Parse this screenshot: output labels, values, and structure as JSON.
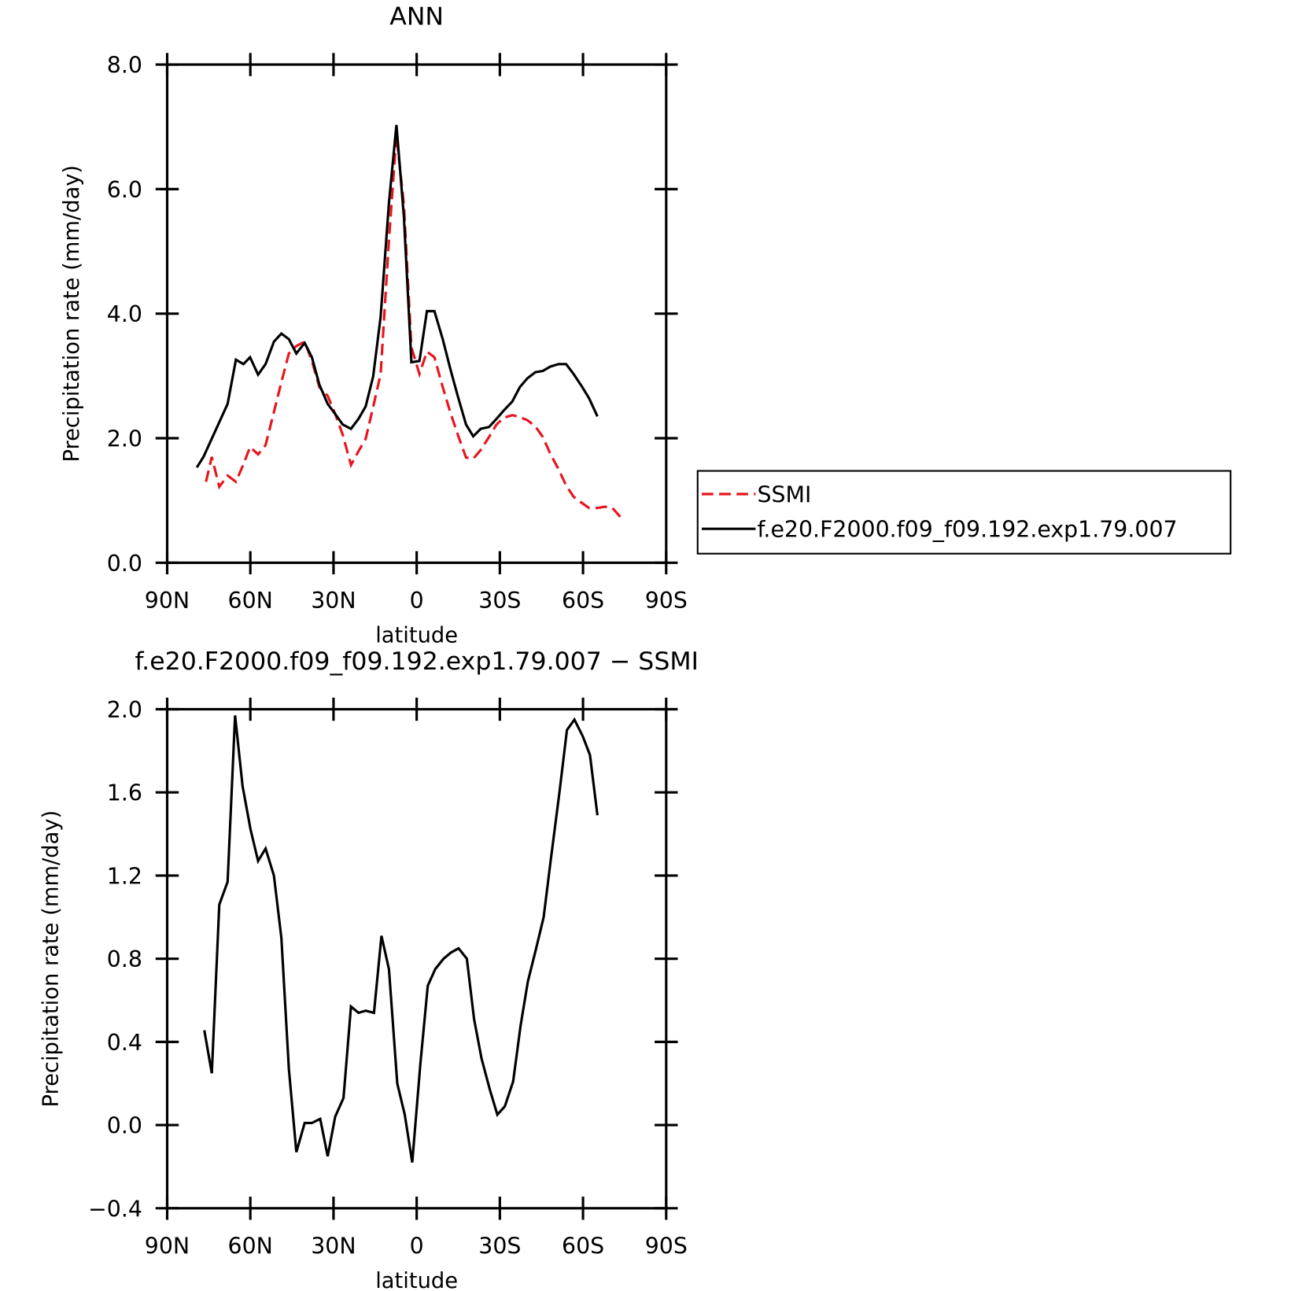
{
  "chart_data": [
    {
      "type": "line",
      "title": "ANN",
      "xlabel": "latitude",
      "ylabel": "Precipitation rate (mm/day)",
      "xlim": [
        90,
        -90
      ],
      "xticks": [
        {
          "value": 90,
          "label": "90N"
        },
        {
          "value": 60,
          "label": "60N"
        },
        {
          "value": 30,
          "label": "30N"
        },
        0,
        {
          "value": -30,
          "label": "30S"
        },
        {
          "value": -60,
          "label": "60S"
        },
        {
          "value": -90,
          "label": "90S"
        }
      ],
      "ylim": [
        0,
        8
      ],
      "yticks": [
        {
          "value": 0,
          "label": "0.0"
        },
        {
          "value": 2,
          "label": "2.0"
        },
        {
          "value": 4,
          "label": "4.0"
        },
        {
          "value": 6,
          "label": "6.0"
        },
        {
          "value": 8,
          "label": "8.0"
        }
      ],
      "legend": "right",
      "series": [
        {
          "name": "SSMI",
          "color": "#e8141c",
          "linestyle": "dashed",
          "x": [
            76.0,
            73.9,
            71.2,
            68.2,
            65.2,
            62.5,
            60.1,
            57.2,
            54.5,
            51.5,
            48.8,
            46.1,
            43.4,
            40.4,
            37.8,
            35.1,
            32.1,
            29.4,
            26.7,
            23.7,
            21.0,
            18.4,
            15.7,
            13.0,
            10.0,
            7.3,
            4.6,
            1.9,
            -1.0,
            -3.7,
            -6.4,
            -9.4,
            -12.1,
            -14.8,
            -17.8,
            -20.4,
            -23.1,
            -26.1,
            -28.8,
            -31.5,
            -34.5,
            -37.2,
            -39.9,
            -42.8,
            -45.5,
            -48.2,
            -51.2,
            -53.9,
            -56.6,
            -59.6,
            -62.2,
            -65.2,
            -67.9,
            -70.6,
            -73.6
          ],
          "values": [
            1.3,
            1.7,
            1.22,
            1.4,
            1.3,
            1.58,
            1.86,
            1.74,
            1.89,
            2.42,
            2.9,
            3.36,
            3.48,
            3.55,
            3.24,
            2.82,
            2.68,
            2.39,
            2.06,
            1.57,
            1.79,
            1.99,
            2.5,
            3.03,
            5.18,
            6.87,
            5.74,
            3.46,
            3.03,
            3.39,
            3.3,
            2.82,
            2.42,
            2.06,
            1.69,
            1.67,
            1.81,
            2.02,
            2.22,
            2.33,
            2.37,
            2.34,
            2.29,
            2.19,
            2.02,
            1.75,
            1.5,
            1.24,
            1.06,
            0.96,
            0.88,
            0.88,
            0.9,
            0.88,
            0.73
          ]
        },
        {
          "name": "f.e20.F2000.f09_f09.192.exp1.79.007",
          "color": "#000000",
          "linestyle": "solid",
          "x": [
            79.3,
            76.9,
            68.2,
            65.2,
            62.5,
            60.1,
            57.2,
            54.5,
            51.5,
            48.8,
            46.1,
            43.4,
            40.4,
            37.8,
            35.1,
            32.1,
            29.4,
            26.7,
            23.7,
            21.0,
            18.4,
            15.7,
            13.0,
            10.0,
            7.3,
            4.6,
            1.9,
            -1.0,
            -3.7,
            -6.4,
            -9.4,
            -12.1,
            -14.8,
            -17.8,
            -20.4,
            -23.1,
            -26.1,
            -28.8,
            -31.5,
            -34.5,
            -37.2,
            -39.9,
            -42.8,
            -45.5,
            -48.2,
            -51.2,
            -53.9,
            -56.6,
            -59.6,
            -62.2,
            -65.2
          ],
          "values": [
            1.53,
            1.7,
            2.55,
            3.26,
            3.19,
            3.3,
            3.02,
            3.19,
            3.55,
            3.68,
            3.59,
            3.36,
            3.53,
            3.3,
            2.86,
            2.55,
            2.39,
            2.22,
            2.15,
            2.31,
            2.51,
            2.99,
            3.95,
            5.78,
            7.03,
            5.55,
            3.22,
            3.24,
            4.04,
            4.04,
            3.59,
            3.12,
            2.68,
            2.22,
            2.03,
            2.15,
            2.18,
            2.31,
            2.45,
            2.59,
            2.82,
            2.96,
            3.06,
            3.08,
            3.15,
            3.19,
            3.19,
            3.03,
            2.83,
            2.64,
            2.35
          ]
        }
      ]
    },
    {
      "type": "line",
      "title": "f.e20.F2000.f09_f09.192.exp1.79.007 − SSMI",
      "xlabel": "latitude",
      "ylabel": "Precipitation rate (mm/day)",
      "xlim": [
        90,
        -90
      ],
      "xticks": [
        {
          "value": 90,
          "label": "90N"
        },
        {
          "value": 60,
          "label": "60N"
        },
        {
          "value": 30,
          "label": "30N"
        },
        0,
        {
          "value": -30,
          "label": "30S"
        },
        {
          "value": -60,
          "label": "60S"
        },
        {
          "value": -90,
          "label": "90S"
        }
      ],
      "ylim": [
        -0.4,
        2.0
      ],
      "yticks": [
        {
          "value": -0.4,
          "label": "−0.4"
        },
        {
          "value": 0,
          "label": "0.0"
        },
        {
          "value": 0.4,
          "label": "0.4"
        },
        {
          "value": 0.8,
          "label": "0.8"
        },
        {
          "value": 1.2,
          "label": "1.2"
        },
        {
          "value": 1.6,
          "label": "1.6"
        },
        {
          "value": 2.0,
          "label": "2.0"
        }
      ],
      "series": [
        {
          "color": "#000000",
          "linestyle": "solid",
          "x": [
            76.6,
            73.9,
            71.2,
            68.2,
            65.5,
            62.8,
            59.9,
            57.2,
            54.5,
            51.5,
            48.8,
            46.1,
            43.4,
            40.4,
            37.8,
            34.8,
            32.1,
            29.4,
            26.4,
            23.7,
            21.0,
            18.4,
            15.4,
            12.7,
            10.0,
            7.0,
            4.3,
            1.6,
            -1.3,
            -4.0,
            -6.7,
            -9.7,
            -12.4,
            -15.1,
            -18.1,
            -20.7,
            -23.4,
            -26.4,
            -29.1,
            -31.8,
            -34.8,
            -37.5,
            -40.1,
            -43.1,
            -45.8,
            -48.5,
            -51.5,
            -54.2,
            -56.9,
            -59.9,
            -62.5,
            -65.2
          ],
          "values": [
            0.456,
            0.249,
            1.06,
            1.17,
            1.97,
            1.63,
            1.42,
            1.27,
            1.33,
            1.2,
            0.9,
            0.27,
            -0.13,
            0.01,
            0.01,
            0.03,
            -0.15,
            0.04,
            0.13,
            0.57,
            0.54,
            0.55,
            0.54,
            0.91,
            0.75,
            0.2,
            0.05,
            -0.18,
            0.29,
            0.67,
            0.75,
            0.8,
            0.83,
            0.85,
            0.8,
            0.51,
            0.32,
            0.17,
            0.05,
            0.09,
            0.21,
            0.48,
            0.69,
            0.85,
            1.0,
            1.29,
            1.6,
            1.9,
            1.95,
            1.87,
            1.78,
            1.49
          ]
        }
      ]
    }
  ]
}
